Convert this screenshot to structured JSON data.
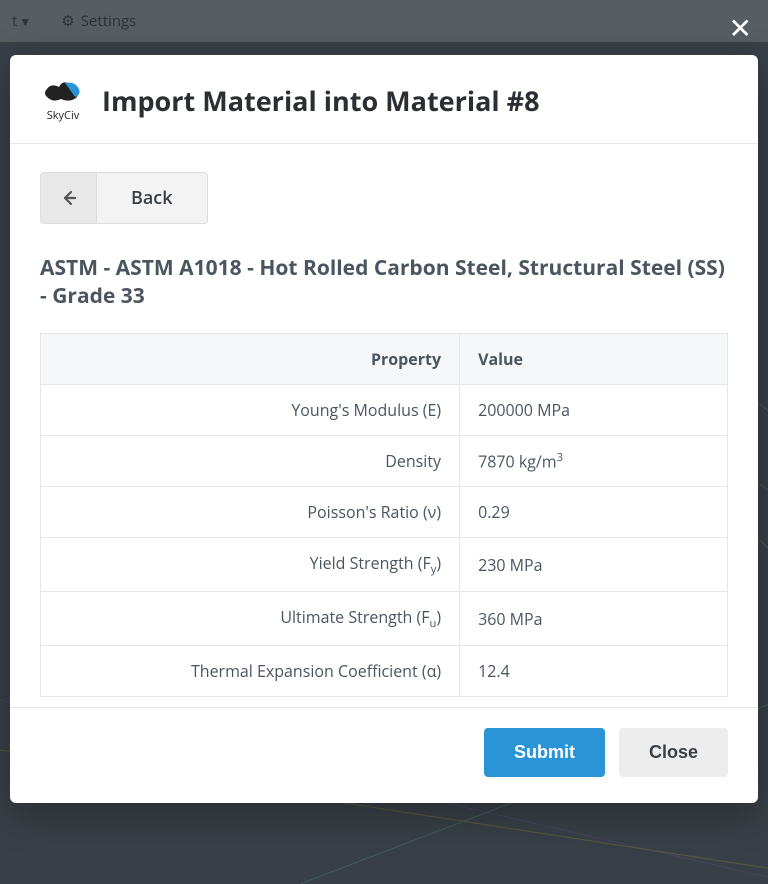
{
  "topbar": {
    "truncated_label": "t",
    "settings_label": "Settings"
  },
  "logo": {
    "text": "SkyCiv"
  },
  "modal": {
    "title": "Import Material into Material #8",
    "back_label": "Back",
    "material_name": "ASTM - ASTM A1018 - Hot Rolled Carbon Steel, Structural Steel (SS) - Grade 33",
    "columns": {
      "property": "Property",
      "value": "Value"
    },
    "rows": [
      {
        "property": "Young's Modulus (E)",
        "value": "200000 MPa"
      },
      {
        "property": "Density",
        "value_html": "7870 kg/m<span class=\"sup\">3</span>"
      },
      {
        "property": "Poisson's Ratio (ν)",
        "value": "0.29"
      },
      {
        "property_html": "Yield Strength (F<span class=\"sub\">y</span>)",
        "value": "230 MPa"
      },
      {
        "property_html": "Ultimate Strength (F<span class=\"sub\">u</span>)",
        "value": "360 MPa"
      },
      {
        "property": "Thermal Expansion Coefficient (α)",
        "value": "12.4"
      }
    ],
    "submit_label": "Submit",
    "close_label": "Close"
  },
  "colors": {
    "primary": "#2a94d6",
    "text": "#4a5560",
    "border": "#e6e6e6"
  }
}
